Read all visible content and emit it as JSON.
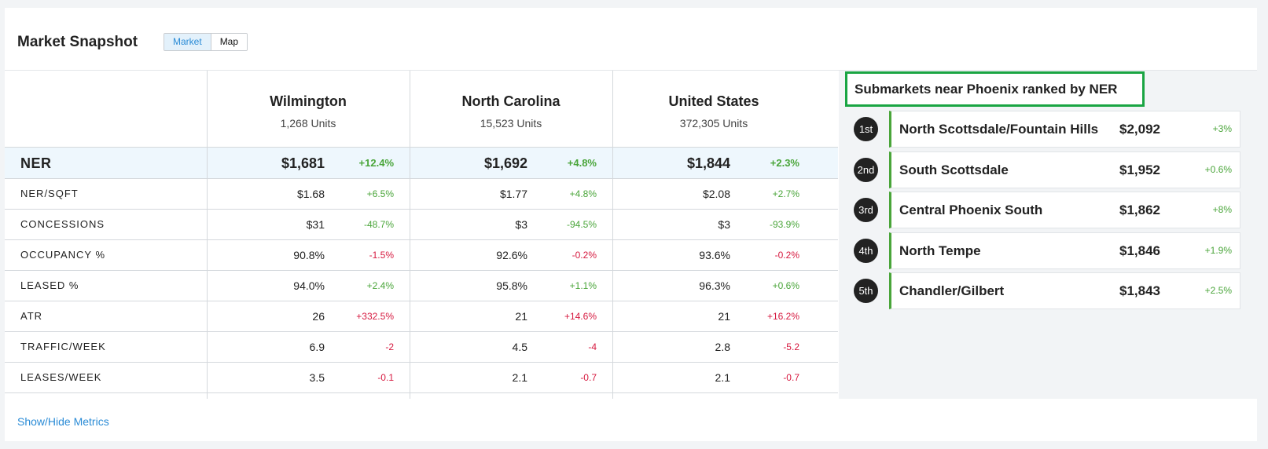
{
  "header": {
    "title": "Market Snapshot",
    "tabs": [
      {
        "label": "Market",
        "active": true
      },
      {
        "label": "Map",
        "active": false
      }
    ]
  },
  "columns": [
    {
      "place": "Wilmington",
      "units": "1,268 Units"
    },
    {
      "place": "North Carolina",
      "units": "15,523 Units"
    },
    {
      "place": "United States",
      "units": "372,305 Units"
    }
  ],
  "metrics": [
    {
      "label": "NER",
      "values": [
        {
          "value": "$1,681",
          "change": "+12.4%",
          "trend": "pos"
        },
        {
          "value": "$1,692",
          "change": "+4.8%",
          "trend": "pos"
        },
        {
          "value": "$1,844",
          "change": "+2.3%",
          "trend": "pos"
        }
      ]
    },
    {
      "label": "NER/SQFT",
      "values": [
        {
          "value": "$1.68",
          "change": "+6.5%",
          "trend": "pos"
        },
        {
          "value": "$1.77",
          "change": "+4.8%",
          "trend": "pos"
        },
        {
          "value": "$2.08",
          "change": "+2.7%",
          "trend": "pos"
        }
      ]
    },
    {
      "label": "CONCESSIONS",
      "values": [
        {
          "value": "$31",
          "change": "-48.7%",
          "trend": "pos"
        },
        {
          "value": "$3",
          "change": "-94.5%",
          "trend": "pos"
        },
        {
          "value": "$3",
          "change": "-93.9%",
          "trend": "pos"
        }
      ]
    },
    {
      "label": "OCCUPANCY %",
      "values": [
        {
          "value": "90.8%",
          "change": "-1.5%",
          "trend": "neg"
        },
        {
          "value": "92.6%",
          "change": "-0.2%",
          "trend": "neg"
        },
        {
          "value": "93.6%",
          "change": "-0.2%",
          "trend": "neg"
        }
      ]
    },
    {
      "label": "LEASED %",
      "values": [
        {
          "value": "94.0%",
          "change": "+2.4%",
          "trend": "pos"
        },
        {
          "value": "95.8%",
          "change": "+1.1%",
          "trend": "pos"
        },
        {
          "value": "96.3%",
          "change": "+0.6%",
          "trend": "pos"
        }
      ]
    },
    {
      "label": "ATR",
      "values": [
        {
          "value": "26",
          "change": "+332.5%",
          "trend": "neg"
        },
        {
          "value": "21",
          "change": "+14.6%",
          "trend": "neg"
        },
        {
          "value": "21",
          "change": "+16.2%",
          "trend": "neg"
        }
      ]
    },
    {
      "label": "TRAFFIC/WEEK",
      "values": [
        {
          "value": "6.9",
          "change": "-2",
          "trend": "neg"
        },
        {
          "value": "4.5",
          "change": "-4",
          "trend": "neg"
        },
        {
          "value": "2.8",
          "change": "-5.2",
          "trend": "neg"
        }
      ]
    },
    {
      "label": "LEASES/WEEK",
      "values": [
        {
          "value": "3.5",
          "change": "-0.1",
          "trend": "neg"
        },
        {
          "value": "2.1",
          "change": "-0.7",
          "trend": "neg"
        },
        {
          "value": "2.1",
          "change": "-0.7",
          "trend": "neg"
        }
      ]
    }
  ],
  "footer": {
    "link_label": "Show/Hide Metrics"
  },
  "submarkets": {
    "title": "Submarkets near Phoenix ranked by NER",
    "items": [
      {
        "rank": "1st",
        "name": "North Scottsdale/Fountain Hills",
        "value": "$2,092",
        "change": "+3%"
      },
      {
        "rank": "2nd",
        "name": "South Scottsdale",
        "value": "$1,952",
        "change": "+0.6%"
      },
      {
        "rank": "3rd",
        "name": "Central Phoenix South",
        "value": "$1,862",
        "change": "+8%"
      },
      {
        "rank": "4th",
        "name": "North Tempe",
        "value": "$1,846",
        "change": "+1.9%"
      },
      {
        "rank": "5th",
        "name": "Chandler/Gilbert",
        "value": "$1,843",
        "change": "+2.5%"
      }
    ]
  },
  "colors": {
    "positive": "#4aa53a",
    "negative": "#d6193f",
    "accent": "#2a8bd6",
    "highlight_border": "#1aa543"
  }
}
